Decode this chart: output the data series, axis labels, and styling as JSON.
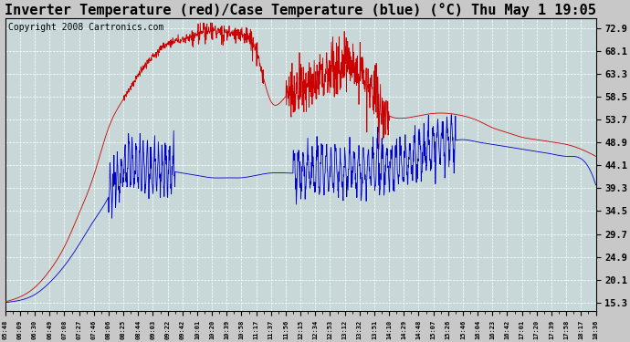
{
  "title": "Inverter Temperature (red)/Case Temperature (blue) (°C) Thu May 1 19:05",
  "copyright": "Copyright 2008 Cartronics.com",
  "y_ticks": [
    15.3,
    20.1,
    24.9,
    29.7,
    34.5,
    39.3,
    44.1,
    48.9,
    53.7,
    58.5,
    63.3,
    68.1,
    72.9
  ],
  "ylim": [
    13.5,
    75.0
  ],
  "x_labels": [
    "05:48",
    "06:09",
    "06:30",
    "06:49",
    "07:08",
    "07:27",
    "07:46",
    "08:06",
    "08:25",
    "08:44",
    "09:03",
    "09:22",
    "09:42",
    "10:01",
    "10:20",
    "10:39",
    "10:58",
    "11:17",
    "11:37",
    "11:56",
    "12:15",
    "12:34",
    "12:53",
    "13:12",
    "13:32",
    "13:51",
    "14:10",
    "14:29",
    "14:48",
    "15:07",
    "15:26",
    "15:46",
    "16:04",
    "16:23",
    "16:42",
    "17:01",
    "17:20",
    "17:39",
    "17:58",
    "18:17",
    "18:36"
  ],
  "bg_color": "#c8c8c8",
  "plot_bg_color": "#c8d8d8",
  "grid_color": "#ffffff",
  "red_line_color": "#cc0000",
  "blue_line_color": "#0000cc",
  "title_font_size": 11,
  "copyright_font_size": 7
}
